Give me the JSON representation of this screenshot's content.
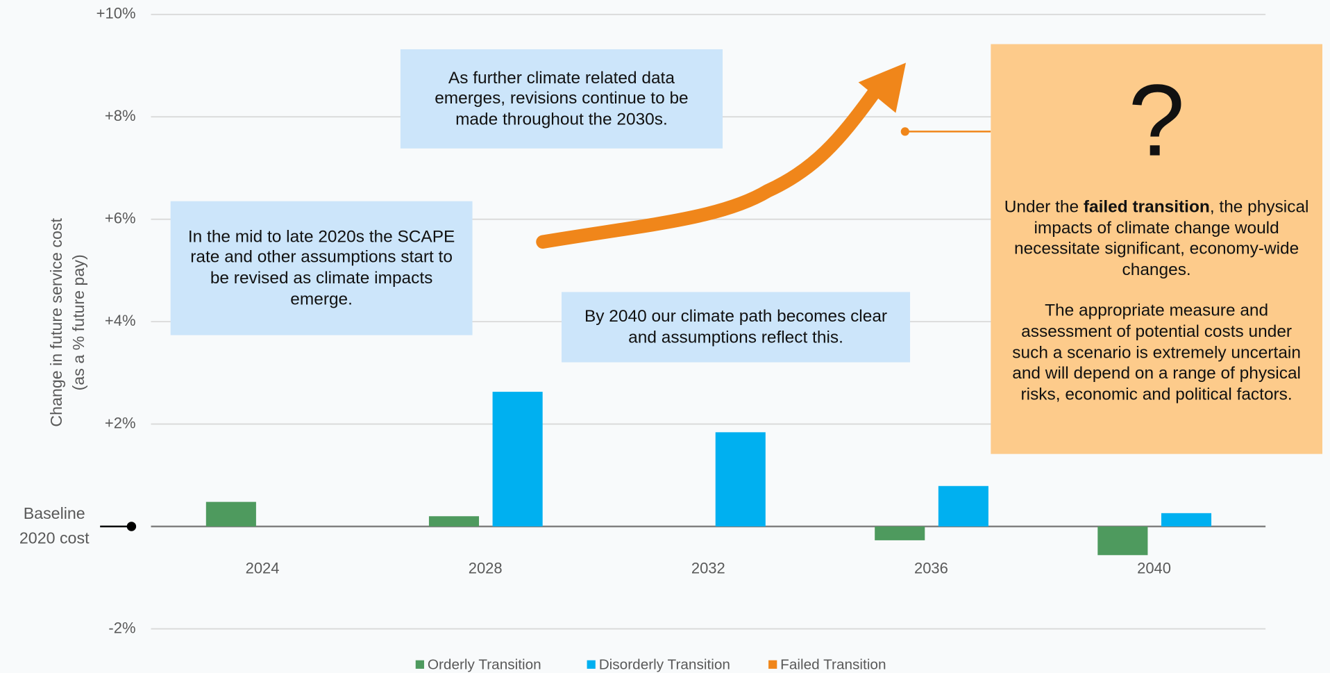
{
  "chart_data": {
    "type": "bar",
    "categories": [
      "2024",
      "2028",
      "2032",
      "2036",
      "2040"
    ],
    "series": [
      {
        "name": "Orderly Transition",
        "color": "#4e9a5e",
        "values": [
          0.48,
          0.2,
          null,
          -0.27,
          -0.56
        ]
      },
      {
        "name": "Disorderly Transition",
        "color": "#00b0f0",
        "values": [
          null,
          2.63,
          1.84,
          0.79,
          0.26
        ]
      },
      {
        "name": "Failed Transition",
        "color": "#f0861a",
        "values": [
          null,
          null,
          null,
          null,
          null
        ]
      }
    ],
    "ylim": [
      -2,
      10
    ],
    "yticks": [
      {
        "value": -2,
        "label": "-2%"
      },
      {
        "value": 2,
        "label": "+2%"
      },
      {
        "value": 4,
        "label": "+4%"
      },
      {
        "value": 6,
        "label": "+6%"
      },
      {
        "value": 8,
        "label": "+8%"
      },
      {
        "value": 10,
        "label": "+10%"
      }
    ],
    "ylabel": [
      "Change in future service cost",
      "(as a % future pay)"
    ],
    "baseline": {
      "value": 0,
      "label": [
        "Baseline",
        "2020 cost"
      ]
    },
    "grid": true,
    "legend": "bottom",
    "annotations": [
      "In the mid to late 2020s the SCAPE rate and other assumptions start to be revised as climate impacts emerge.",
      "As further climate related data emerges, revisions continue to be made throughout the 2030s.",
      "By 2040 our climate path becomes clear and assumptions reflect this."
    ],
    "failed_note": {
      "symbol": "?",
      "paragraph1": [
        "Under the ",
        "failed transition",
        ", the physical impacts of climate change would necessitate significant, economy-wide changes."
      ],
      "paragraph2": "The appropriate measure and assessment of potential costs under such a scenario is extremely uncertain and will depend on a range of physical risks, economic and political factors."
    }
  }
}
